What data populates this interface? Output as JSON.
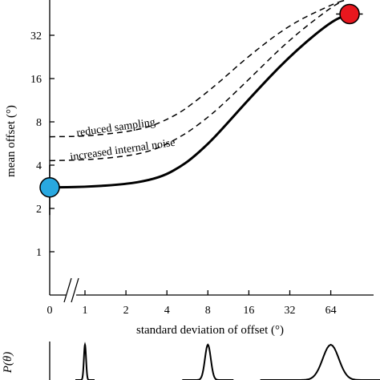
{
  "chart_data": [
    {
      "type": "line",
      "xlabel": "standard deviation of offset (°)",
      "ylabel": "mean offset (°)",
      "x_scale": "log2",
      "y_scale": "log2",
      "x_ticks": [
        "0",
        "1",
        "2",
        "4",
        "8",
        "16",
        "32",
        "64"
      ],
      "y_ticks": [
        "1",
        "2",
        "4",
        "8",
        "16",
        "32"
      ],
      "xlim": [
        0.7,
        110
      ],
      "ylim": [
        0.78,
        52
      ],
      "x_axis_break": true,
      "grid": false,
      "series": [
        {
          "name": "",
          "style": "solid",
          "x": [
            0.7,
            1,
            2,
            3,
            4,
            5,
            6,
            8,
            10,
            16,
            32,
            64,
            88
          ],
          "y": [
            2.8,
            2.82,
            2.95,
            3.15,
            3.45,
            3.9,
            4.4,
            5.6,
            7.0,
            11.5,
            23,
            40,
            45
          ]
        },
        {
          "name": "reduced sampling",
          "style": "dashed",
          "x": [
            0.7,
            1,
            2,
            3,
            4,
            5,
            6,
            8,
            10,
            16,
            32,
            64,
            80
          ],
          "y": [
            6.3,
            6.35,
            6.8,
            7.4,
            8.3,
            9.3,
            10.5,
            13,
            15.5,
            23,
            38,
            52,
            56
          ]
        },
        {
          "name": "increased internal noise",
          "style": "dashed",
          "x": [
            0.7,
            1,
            2,
            3,
            4,
            5,
            6,
            8,
            10,
            16,
            32,
            64,
            80
          ],
          "y": [
            4.3,
            4.35,
            4.6,
            5.0,
            5.6,
            6.3,
            7.0,
            8.6,
            10.3,
            15.8,
            30,
            50,
            56
          ]
        }
      ],
      "points": [
        {
          "x": 0.7,
          "y": 2.8,
          "color": "#29a8e0",
          "err_y": [
            1.8,
            4.0
          ]
        },
        {
          "x": 88,
          "y": 45,
          "color": "#e8171e",
          "err_x": [
            70,
            110
          ]
        }
      ]
    },
    {
      "type": "line",
      "ylabel": "P(θ)",
      "distributions": [
        {
          "center_x": 1,
          "width": "narrow"
        },
        {
          "center_x": 8,
          "width": "medium"
        },
        {
          "center_x": 64,
          "width": "wide"
        }
      ]
    }
  ]
}
